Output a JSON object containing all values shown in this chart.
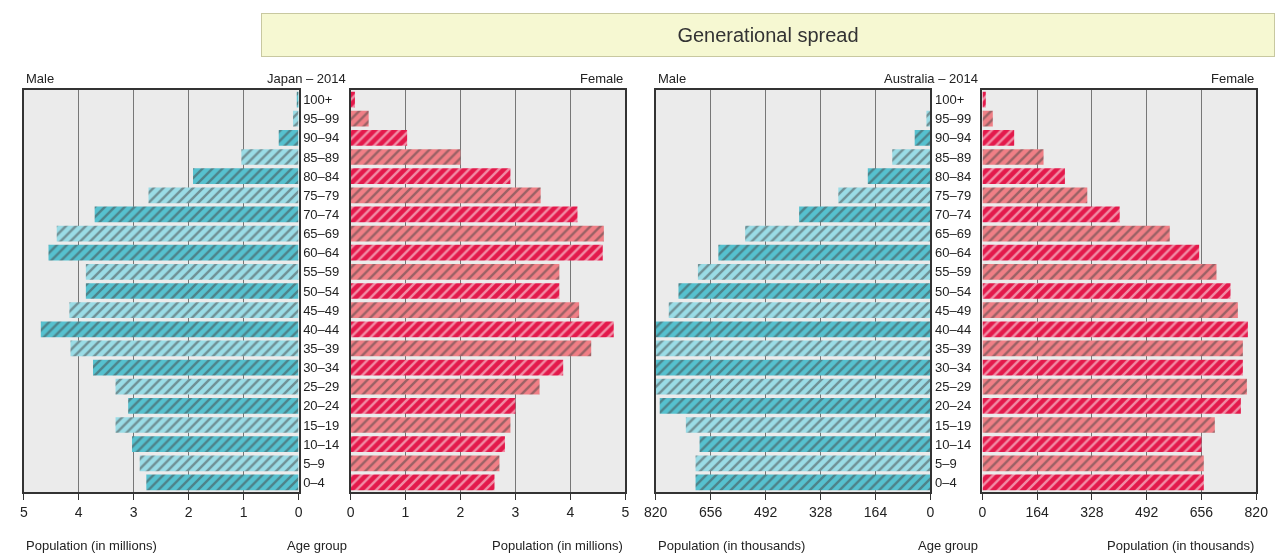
{
  "chart_data": [
    {
      "type": "bar",
      "orientation": "horizontal",
      "title": "Male",
      "subtitle": "Japan – 2014",
      "xlabel": "Population (in millions)",
      "ylabel": "Age group",
      "annotations": [
        "Generational spread"
      ],
      "categories": [
        "100+",
        "95–99",
        "90–94",
        "85–89",
        "80–84",
        "75–79",
        "70–74",
        "65–69",
        "60–64",
        "55–59",
        "50–54",
        "45–49",
        "40–44",
        "35–39",
        "30–34",
        "25–29",
        "20–24",
        "15–19",
        "10–14",
        "5–9",
        "0–4"
      ],
      "values": [
        0.02,
        0.1,
        0.36,
        1.04,
        1.92,
        2.73,
        3.71,
        4.4,
        4.55,
        3.87,
        3.87,
        4.17,
        4.69,
        4.15,
        3.74,
        3.33,
        3.1,
        3.33,
        3.03,
        2.89,
        2.77
      ],
      "colors": [
        "#56c1cf",
        "#9adce6",
        "#56c1cf",
        "#9adce6",
        "#56c1cf",
        "#9adce6",
        "#56c1cf",
        "#9adce6",
        "#56c1cf",
        "#9adce6",
        "#56c1cf",
        "#9adce6",
        "#56c1cf",
        "#9adce6",
        "#56c1cf",
        "#9adce6",
        "#56c1cf",
        "#9adce6",
        "#56c1cf",
        "#9adce6",
        "#56c1cf"
      ],
      "xlim": [
        5,
        0
      ],
      "xticks": [
        5,
        4,
        3,
        2,
        1,
        0
      ],
      "grid": "x"
    },
    {
      "type": "bar",
      "orientation": "horizontal",
      "title": "Female",
      "xlabel": "Population (in millions)",
      "categories": [
        null,
        null,
        null,
        null,
        null,
        null,
        null,
        null,
        null,
        null,
        null,
        null,
        null,
        null,
        null,
        null,
        null,
        null,
        null,
        null,
        null
      ],
      "values": [
        0.08,
        0.33,
        1.03,
        2.0,
        2.91,
        3.46,
        4.13,
        4.61,
        4.59,
        3.8,
        3.8,
        4.16,
        4.79,
        4.38,
        3.87,
        3.44,
        3.0,
        2.91,
        2.81,
        2.71,
        2.62
      ],
      "colors": [
        "#e3194b",
        "#f07f86",
        "#e3194b",
        "#f07f86",
        "#e3194b",
        "#f07f86",
        "#e3194b",
        "#f07f86",
        "#e3194b",
        "#f07f86",
        "#e3194b",
        "#f07f86",
        "#e3194b",
        "#f07f86",
        "#e3194b",
        "#f07f86",
        "#e3194b",
        "#f07f86",
        "#e3194b",
        "#f07f86",
        "#e3194b"
      ],
      "xlim": [
        0,
        5
      ],
      "xticks": [
        0,
        1,
        2,
        3,
        4,
        5
      ],
      "grid": "x",
      "tick_labels": "x"
    },
    {
      "type": "bar",
      "orientation": "horizontal",
      "title": "Male",
      "subtitle": "Australia – 2014",
      "xlabel": "Population (in thousands)",
      "ylabel": "Age group",
      "categories": [
        "100+",
        "95–99",
        "90–94",
        "85–89",
        "80–84",
        "75–79",
        "70–74",
        "65–69",
        "60–64",
        "55–59",
        "50–54",
        "45–49",
        "40–44",
        "35–39",
        "30–34",
        "25–29",
        "20–24",
        "15–19",
        "10–14",
        "5–9",
        "0–4"
      ],
      "values": [
        null,
        12,
        47,
        114,
        187,
        275,
        392,
        553,
        633,
        694,
        752,
        781,
        820,
        820,
        820,
        820,
        808,
        730,
        689,
        701,
        701
      ],
      "colors": [
        "#56c1cf",
        "#9adce6",
        "#56c1cf",
        "#9adce6",
        "#56c1cf",
        "#9adce6",
        "#56c1cf",
        "#9adce6",
        "#56c1cf",
        "#9adce6",
        "#56c1cf",
        "#9adce6",
        "#56c1cf",
        "#9adce6",
        "#56c1cf",
        "#9adce6",
        "#56c1cf",
        "#9adce6",
        "#56c1cf",
        "#9adce6",
        "#56c1cf"
      ],
      "xlim": [
        820,
        0
      ],
      "xticks": [
        820,
        656,
        492,
        328,
        164,
        0
      ],
      "grid": "x"
    },
    {
      "type": "bar",
      "orientation": "horizontal",
      "title": "Female",
      "xlabel": "Population (in thousands)",
      "categories": [
        null,
        null,
        null,
        null,
        null,
        null,
        null,
        null,
        null,
        null,
        null,
        null,
        null,
        null,
        null,
        null,
        null,
        null,
        null,
        null,
        null
      ],
      "values": [
        10,
        31,
        95,
        183,
        247,
        314,
        411,
        561,
        649,
        701,
        743,
        765,
        795,
        780,
        780,
        792,
        774,
        696,
        656,
        663,
        663
      ],
      "colors": [
        "#e3194b",
        "#f07f86",
        "#e3194b",
        "#f07f86",
        "#e3194b",
        "#f07f86",
        "#e3194b",
        "#f07f86",
        "#e3194b",
        "#f07f86",
        "#e3194b",
        "#f07f86",
        "#e3194b",
        "#f07f86",
        "#e3194b",
        "#f07f86",
        "#e3194b",
        "#f07f86",
        "#e3194b",
        "#f07f86",
        "#e3194b"
      ],
      "xlim": [
        0,
        820
      ],
      "xticks": [
        0,
        164,
        328,
        492,
        656,
        820
      ],
      "grid": "x",
      "tick_labels": "x"
    }
  ]
}
